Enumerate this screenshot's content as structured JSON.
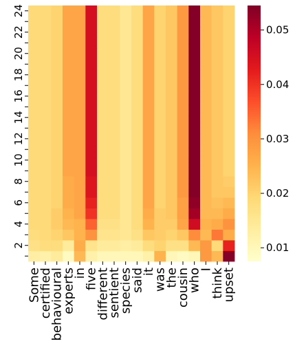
{
  "chart_data": {
    "type": "heatmap",
    "title": "",
    "xlabel": "",
    "ylabel": "",
    "x_categories": [
      "Some",
      "certified",
      "behavioural",
      "experts",
      "in",
      "five",
      "different",
      "sentient",
      "species",
      "said",
      "it",
      "was",
      "the",
      "cousin",
      "who",
      "I",
      "think",
      "upset"
    ],
    "y_tick_labels": [
      "2",
      "4",
      "6",
      "8",
      "10",
      "12",
      "14",
      "16",
      "18",
      "20",
      "22",
      "24"
    ],
    "y_range": [
      1,
      24
    ],
    "colorbar": {
      "colormap": "YlOrRd",
      "range": [
        0.0075,
        0.0545
      ],
      "ticks": [
        "0.01",
        "0.02",
        "0.03",
        "0.04",
        "0.05"
      ],
      "tick_values": [
        0.01,
        0.02,
        0.03,
        0.04,
        0.05
      ]
    },
    "base_row": [
      0.019,
      0.019,
      0.02,
      0.027,
      0.027,
      0.045,
      0.018,
      0.018,
      0.015,
      0.018,
      0.027,
      0.02,
      0.022,
      0.029,
      0.054,
      0.024,
      0.022,
      0.02
    ],
    "rows": [
      {
        "layer": 1,
        "values": [
          0.013,
          0.012,
          0.014,
          0.009,
          0.024,
          0.012,
          0.01,
          0.01,
          0.01,
          0.01,
          0.012,
          0.025,
          0.01,
          0.009,
          0.01,
          0.029,
          0.024,
          0.054
        ]
      },
      {
        "layer": 2,
        "values": [
          0.017,
          0.018,
          0.018,
          0.014,
          0.026,
          0.016,
          0.014,
          0.014,
          0.013,
          0.014,
          0.018,
          0.02,
          0.017,
          0.017,
          0.024,
          0.029,
          0.019,
          0.042
        ]
      },
      {
        "layer": 3,
        "values": [
          0.018,
          0.019,
          0.02,
          0.022,
          0.025,
          0.03,
          0.016,
          0.016,
          0.015,
          0.017,
          0.022,
          0.021,
          0.02,
          0.022,
          0.031,
          0.024,
          0.033,
          0.026
        ]
      },
      {
        "layer": 4,
        "values": [
          0.019,
          0.019,
          0.021,
          0.024,
          0.025,
          0.035,
          0.017,
          0.017,
          0.015,
          0.018,
          0.025,
          0.021,
          0.021,
          0.027,
          0.046,
          0.025,
          0.026,
          0.03
        ]
      },
      {
        "layer": 5,
        "values": [
          0.019,
          0.019,
          0.021,
          0.025,
          0.027,
          0.04,
          0.018,
          0.018,
          0.015,
          0.018,
          0.026,
          0.021,
          0.022,
          0.028,
          0.051,
          0.024,
          0.024,
          0.026
        ]
      },
      {
        "layer": 6,
        "values": [
          0.019,
          0.019,
          0.02,
          0.026,
          0.027,
          0.042,
          0.018,
          0.018,
          0.015,
          0.018,
          0.027,
          0.02,
          0.022,
          0.028,
          0.053,
          0.024,
          0.023,
          0.024
        ]
      },
      {
        "layer": 7,
        "values": [
          0.019,
          0.019,
          0.02,
          0.026,
          0.027,
          0.044,
          0.018,
          0.018,
          0.015,
          0.018,
          0.027,
          0.02,
          0.022,
          0.029,
          0.054,
          0.024,
          0.022,
          0.022
        ]
      },
      {
        "layer": 8,
        "values": [
          0.019,
          0.019,
          0.02,
          0.026,
          0.027,
          0.044,
          0.018,
          0.018,
          0.015,
          0.018,
          0.027,
          0.02,
          0.022,
          0.029,
          0.054,
          0.024,
          0.022,
          0.021
        ]
      },
      {
        "layer": 9,
        "values": [
          0.019,
          0.019,
          0.02,
          0.027,
          0.027,
          0.045,
          0.018,
          0.018,
          0.015,
          0.018,
          0.027,
          0.02,
          0.022,
          0.029,
          0.054,
          0.024,
          0.022,
          0.02
        ]
      }
    ]
  }
}
